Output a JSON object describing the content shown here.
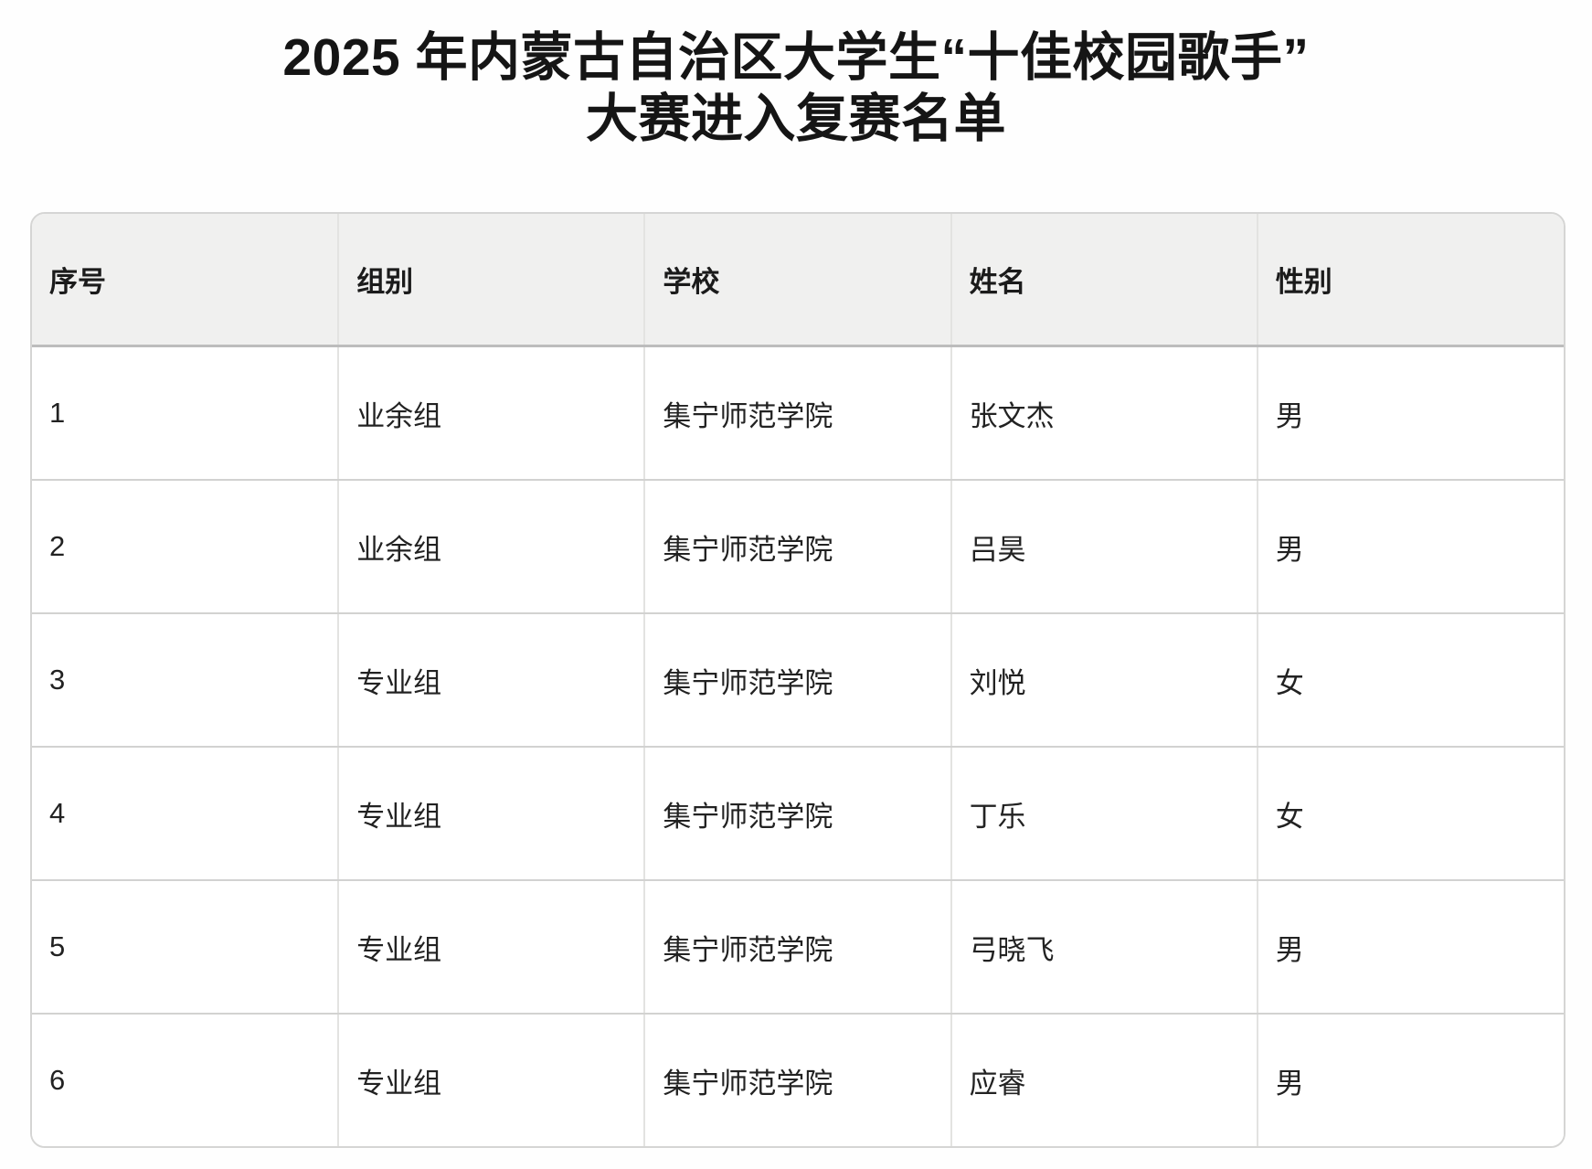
{
  "page": {
    "title_line1": "2025 年内蒙古自治区大学生“十佳校园歌手”",
    "title_line2": "大赛进入复赛名单"
  },
  "table": {
    "columns": [
      "序号",
      "组别",
      "学校",
      "姓名",
      "性别"
    ],
    "rows": [
      [
        "1",
        "业余组",
        "集宁师范学院",
        "张文杰",
        "男"
      ],
      [
        "2",
        "业余组",
        "集宁师范学院",
        "吕昊",
        "男"
      ],
      [
        "3",
        "专业组",
        "集宁师范学院",
        "刘悦",
        "女"
      ],
      [
        "4",
        "专业组",
        "集宁师范学院",
        "丁乐",
        "女"
      ],
      [
        "5",
        "专业组",
        "集宁师范学院",
        "弓晓飞",
        "男"
      ],
      [
        "6",
        "专业组",
        "集宁师范学院",
        "应睿",
        "男"
      ]
    ],
    "colors": {
      "header_bg": "#f0f0ef",
      "outer_border": "#d5d5d4",
      "header_divider": "#bcbcbc",
      "row_divider": "#d2d2d1",
      "column_divider": "#e3e3e1",
      "text": "#1a1a1a"
    }
  }
}
